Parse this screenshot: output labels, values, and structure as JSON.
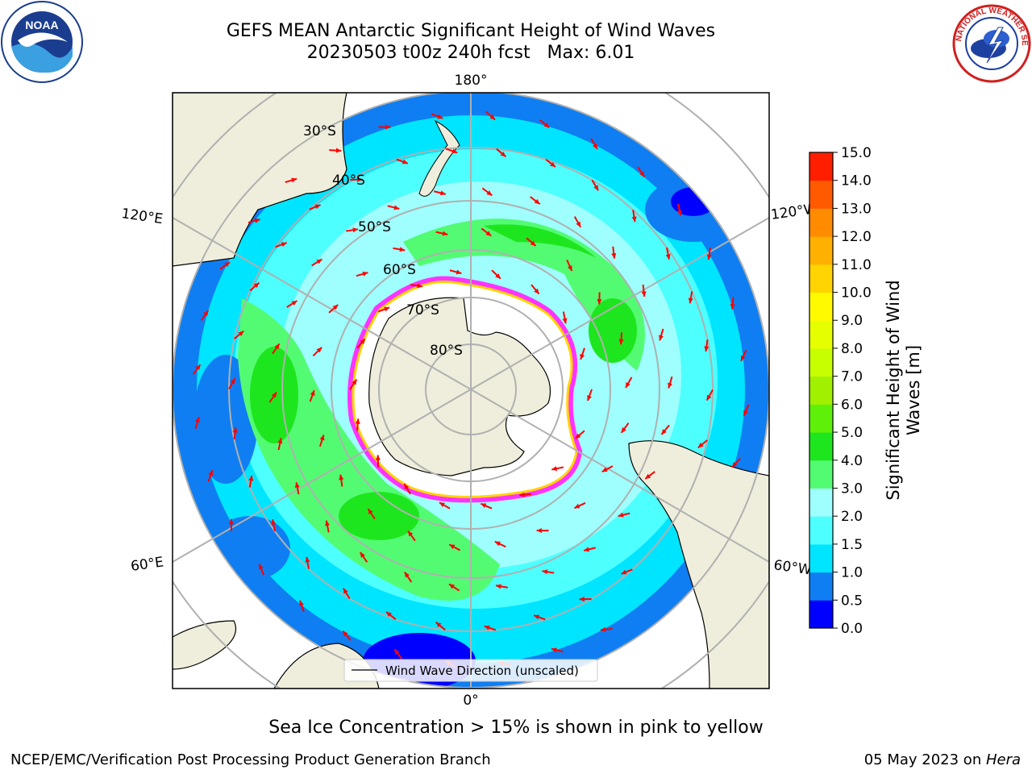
{
  "title_line1": "GEFS MEAN Antarctic Significant Height of Wind Waves",
  "title_line2": "20230503 t00z 240h fcst   Max: 6.01",
  "map": {
    "lat_labels": [
      "30°S",
      "40°S",
      "50°S",
      "60°S",
      "70°S",
      "80°S"
    ],
    "lon_labels": {
      "top": "180°",
      "bottom": "0°",
      "upper_left": "120°E",
      "lower_left": "60°E",
      "upper_right": "120°W",
      "lower_right": "60°W"
    },
    "legend_label": "Wind Wave Direction (unscaled)",
    "colors": {
      "land": "#efeedc",
      "ice_free": "#ffffff",
      "arrow": "#ff0000",
      "ice_edge": "#ff33ff",
      "grid": "#b0b0b0"
    }
  },
  "colorbar": {
    "label_line1": "Significant Height of Wind",
    "label_line2": "Waves [m]",
    "ticks": [
      "0.0",
      "0.5",
      "1.0",
      "1.5",
      "2.0",
      "3.0",
      "4.0",
      "5.0",
      "6.0",
      "7.0",
      "8.0",
      "9.0",
      "10.0",
      "11.0",
      "12.0",
      "13.0",
      "14.0",
      "15.0"
    ],
    "colors": [
      "#0000ff",
      "#0f7ef2",
      "#00e5ff",
      "#4dffff",
      "#9ffefe",
      "#53fb73",
      "#1ee61e",
      "#5ff00a",
      "#a0f000",
      "#c8ff00",
      "#e6ff00",
      "#fffa00",
      "#ffd400",
      "#ffb000",
      "#ff8c00",
      "#ff5a00",
      "#ff1e00"
    ]
  },
  "subtitle": "Sea Ice Concentration > 15% is shown in pink to yellow",
  "footer_left": "NCEP/EMC/Verification Post Processing Product Generation Branch",
  "footer_right_date": "05 May 2023 on ",
  "footer_right_host": "Hera",
  "logos": {
    "noaa_text": "NOAA",
    "nws_text": "NATIONAL WEATHER SERVICE"
  }
}
